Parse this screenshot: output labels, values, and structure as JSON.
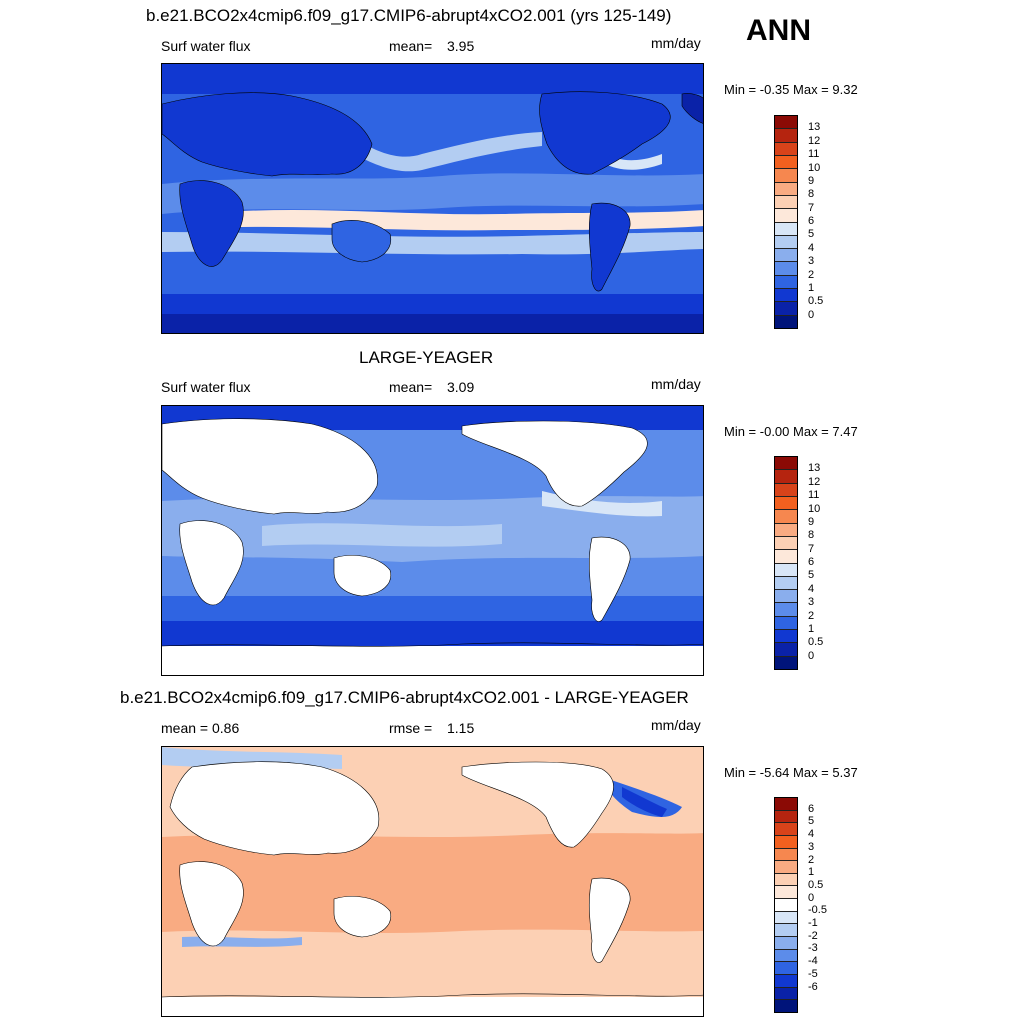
{
  "season": "ANN",
  "units": "mm/day",
  "panels": [
    {
      "title": "b.e21.BCO2x4cmip6.f09_g17.CMIP6-abrupt4xCO2.001 (yrs 125-149)",
      "left_label": "Surf water flux",
      "stat_label": "mean=",
      "stat_value": "3.95",
      "units": "mm/day",
      "minmax": "Min =  -0.35 Max =    9.32",
      "colorbar_colors": [
        "#8b0a05",
        "#b5240f",
        "#d8431a",
        "#f2601f",
        "#f6874f",
        "#f9ab82",
        "#fcd0b4",
        "#fde8da",
        "#d8e6f7",
        "#b3cdf2",
        "#8aaeed",
        "#5c8cea",
        "#2f64e2",
        "#1138d1",
        "#0a22a8",
        "#00147a"
      ],
      "colorbar_ticks": [
        "13",
        "12",
        "11",
        "10",
        "9",
        "8",
        "7",
        "6",
        "5",
        "4",
        "3",
        "2",
        "1",
        "0.5",
        "0"
      ]
    },
    {
      "title": "LARGE-YEAGER",
      "left_label": "Surf water flux",
      "stat_label": "mean=",
      "stat_value": "3.09",
      "units": "mm/day",
      "minmax": "Min =  -0.00 Max =    7.47",
      "colorbar_colors": [
        "#8b0a05",
        "#b5240f",
        "#d8431a",
        "#f2601f",
        "#f6874f",
        "#f9ab82",
        "#fcd0b4",
        "#fde8da",
        "#d8e6f7",
        "#b3cdf2",
        "#8aaeed",
        "#5c8cea",
        "#2f64e2",
        "#1138d1",
        "#0a22a8",
        "#00147a"
      ],
      "colorbar_ticks": [
        "13",
        "12",
        "11",
        "10",
        "9",
        "8",
        "7",
        "6",
        "5",
        "4",
        "3",
        "2",
        "1",
        "0.5",
        "0"
      ]
    },
    {
      "title": "b.e21.BCO2x4cmip6.f09_g17.CMIP6-abrupt4xCO2.001 - LARGE-YEAGER",
      "left_label": "mean =   0.86",
      "stat_label": "rmse =",
      "stat_value": "1.15",
      "units": "mm/day",
      "minmax": "Min =  -5.64 Max =    5.37",
      "colorbar_colors": [
        "#8b0a05",
        "#b5240f",
        "#d8431a",
        "#f2601f",
        "#f6874f",
        "#f9ab82",
        "#fcd0b4",
        "#fde8da",
        "#ffffff",
        "#d8e6f7",
        "#b3cdf2",
        "#8aaeed",
        "#5c8cea",
        "#2f64e2",
        "#1138d1",
        "#0a22a8",
        "#00147a"
      ],
      "colorbar_ticks": [
        "6",
        "5",
        "4",
        "3",
        "2",
        "1",
        "0.5",
        "0",
        "-0.5",
        "-1",
        "-2",
        "-3",
        "-4",
        "-5",
        "-6"
      ]
    }
  ]
}
